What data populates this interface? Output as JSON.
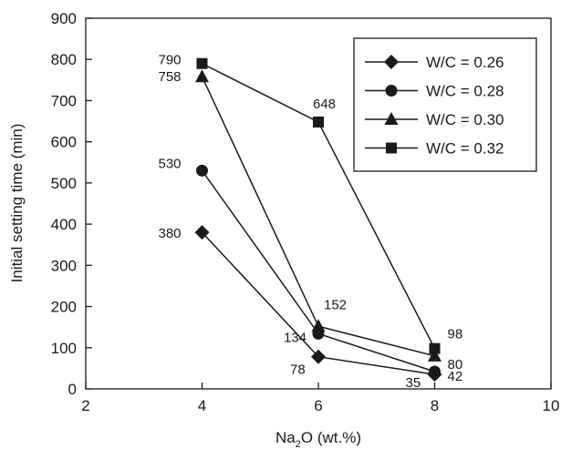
{
  "chart_data": {
    "type": "line",
    "xlabel": "Na",
    "xlabel_sub": "2",
    "xlabel_tail": "O (wt.%)",
    "ylabel": "Initial setting time (min)",
    "xlim": [
      2,
      10
    ],
    "ylim": [
      0,
      900
    ],
    "xticks": [
      2,
      4,
      6,
      8,
      10
    ],
    "yticks": [
      0,
      100,
      200,
      300,
      400,
      500,
      600,
      700,
      800,
      900
    ],
    "grid": false,
    "legend_position": "top-right",
    "series": [
      {
        "name": "W/C = 0.26",
        "marker": "diamond",
        "x": [
          4,
          6,
          8
        ],
        "y": [
          380,
          78,
          35
        ]
      },
      {
        "name": "W/C = 0.28",
        "marker": "circle",
        "x": [
          4,
          6,
          8
        ],
        "y": [
          530,
          134,
          42
        ]
      },
      {
        "name": "W/C = 0.30",
        "marker": "triangle",
        "x": [
          4,
          6,
          8
        ],
        "y": [
          758,
          152,
          80
        ]
      },
      {
        "name": "W/C = 0.32",
        "marker": "square",
        "x": [
          4,
          6,
          8
        ],
        "y": [
          790,
          648,
          98
        ]
      }
    ],
    "data_labels": [
      {
        "text": "380",
        "series": 0,
        "point": 0
      },
      {
        "text": "78",
        "series": 0,
        "point": 1
      },
      {
        "text": "35",
        "series": 0,
        "point": 2
      },
      {
        "text": "530",
        "series": 1,
        "point": 0
      },
      {
        "text": "134",
        "series": 1,
        "point": 1
      },
      {
        "text": "42",
        "series": 1,
        "point": 2
      },
      {
        "text": "758",
        "series": 2,
        "point": 0
      },
      {
        "text": "152",
        "series": 2,
        "point": 1
      },
      {
        "text": "80",
        "series": 2,
        "point": 2
      },
      {
        "text": "790",
        "series": 3,
        "point": 0
      },
      {
        "text": "648",
        "series": 3,
        "point": 1
      },
      {
        "text": "98",
        "series": 3,
        "point": 2
      }
    ],
    "colors": {
      "line": "#1a1a1a",
      "marker": "#1a1a1a"
    }
  }
}
